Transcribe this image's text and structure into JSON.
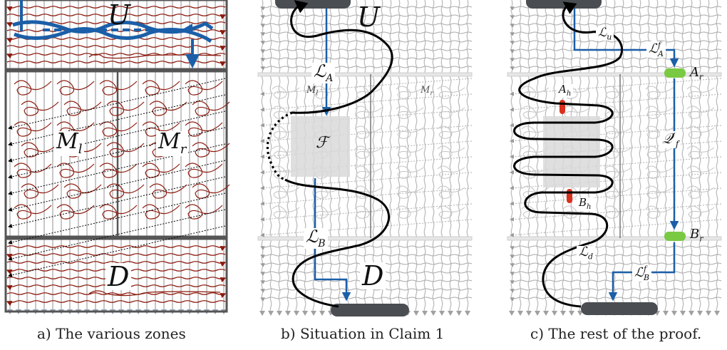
{
  "panels": [
    {
      "caption": "a) The various zones",
      "zone_labels": [
        "U",
        "M_l",
        "M_r",
        "D"
      ]
    },
    {
      "caption": "b) Situation in Claim 1",
      "labels": [
        "U",
        "ℒ_A",
        "M_l",
        "M_r",
        "ℱ",
        "ℒ_B",
        "D"
      ]
    },
    {
      "caption": "c) The rest of the proof.",
      "labels": [
        "ℒ_u",
        "ℒ^f_A",
        "A_r",
        "A_h",
        "𝒬'_f",
        "B_h",
        "B_r",
        "ℒ_d",
        "ℒ^f_B"
      ]
    }
  ],
  "colors": {
    "path_dark_red": "#8b1a0e",
    "blue_path": "#1b5fa8",
    "black_curve": "#000000",
    "grey_grid": "#bdbdbd",
    "dark_frame": "#555555",
    "pad_dark": "#4a4d52",
    "pad_green": "#7ac943",
    "marker_red": "#d9301e",
    "shaded_square": "#d9d9d9"
  }
}
